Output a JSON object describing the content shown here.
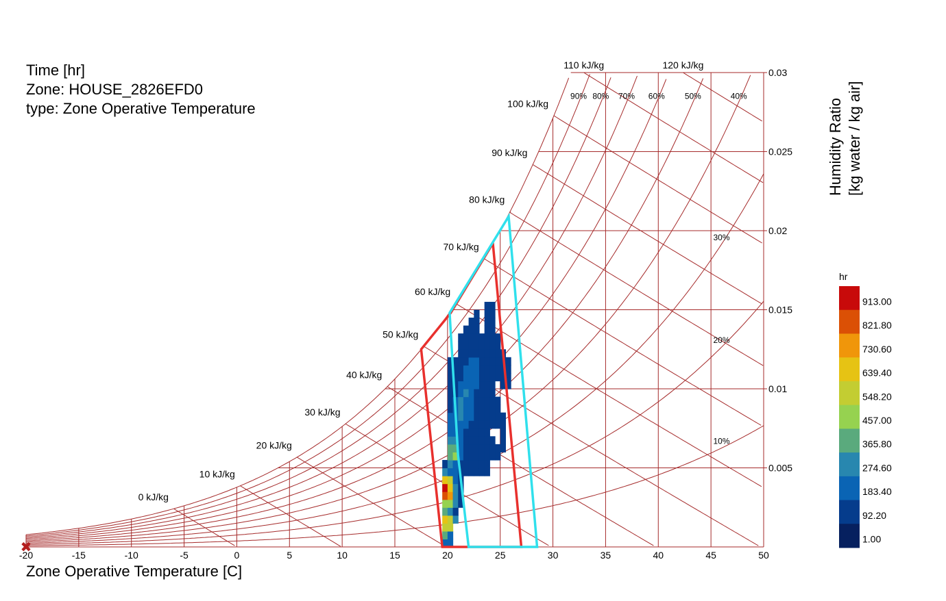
{
  "header": {
    "line1": "Time [hr]",
    "line2": "Zone: HOUSE_2826EFD0",
    "line3": "type: Zone Operative Temperature"
  },
  "chart_data": {
    "type": "heatmap",
    "xlabel": "Zone Operative Temperature [C]",
    "ylabel_line1": "Humidity Ratio",
    "ylabel_line2": "[kg water / kg air]",
    "xlim": [
      -20,
      50
    ],
    "ylim": [
      0,
      0.03
    ],
    "x_ticks": [
      "-20",
      "-15",
      "-10",
      "-5",
      "0",
      "5",
      "10",
      "15",
      "20",
      "25",
      "30",
      "35",
      "40",
      "45",
      "50"
    ],
    "y_ticks": [
      "0.005",
      "0.01",
      "0.015",
      "0.02",
      "0.025",
      "0.03"
    ],
    "enthalpy_lines": [
      0,
      10,
      20,
      30,
      40,
      50,
      60,
      70,
      80,
      90,
      100,
      110,
      120
    ],
    "enthalpy_unit": "kJ/kg",
    "rh_lines": [
      10,
      20,
      30,
      40,
      50,
      60,
      70,
      80,
      90
    ],
    "rh_labels": [
      "10%",
      "20%",
      "30%",
      "40%",
      "50%",
      "60%",
      "70%",
      "80%",
      "90%"
    ],
    "colorbar": {
      "title": "hr",
      "ticks": [
        "913.00",
        "821.80",
        "730.60",
        "639.40",
        "548.20",
        "457.00",
        "365.80",
        "274.60",
        "183.40",
        "92.20",
        "1.00"
      ],
      "colors": [
        "#c80a0a",
        "#db5005",
        "#f0960a",
        "#e6c314",
        "#c3cd32",
        "#96d250",
        "#5aaa7d",
        "#2887af",
        "#0a64b4",
        "#053c8c",
        "#06205f"
      ]
    },
    "comfort_zones": [
      {
        "color": "#e8302d",
        "points": [
          [
            19.5,
            0
          ],
          [
            22,
            0
          ],
          [
            27,
            0
          ],
          [
            24.3,
            0.0192
          ],
          [
            20.3,
            0.0148
          ],
          [
            17.5,
            0.0125
          ]
        ]
      },
      {
        "color": "#30e0ec",
        "points": [
          [
            22,
            0
          ],
          [
            28.5,
            0
          ],
          [
            25.8,
            0.0209
          ],
          [
            20.2,
            0.0148
          ],
          [
            21,
            0.0058
          ],
          [
            22,
            0
          ]
        ]
      }
    ],
    "bin_x": 0.5,
    "bin_y": 0.0005,
    "cells": [
      [
        19.5,
        0.0,
        2
      ],
      [
        20.0,
        0.0,
        2
      ],
      [
        19.5,
        0.0005,
        4
      ],
      [
        20.0,
        0.0005,
        2
      ],
      [
        19.5,
        0.001,
        6
      ],
      [
        20.0,
        0.001,
        6
      ],
      [
        19.5,
        0.0015,
        7
      ],
      [
        20.0,
        0.0015,
        6
      ],
      [
        20.5,
        0.0015,
        3
      ],
      [
        19.5,
        0.002,
        4
      ],
      [
        20.0,
        0.002,
        3
      ],
      [
        20.5,
        0.002,
        1
      ],
      [
        19.5,
        0.0025,
        5
      ],
      [
        20.0,
        0.0025,
        5
      ],
      [
        20.5,
        0.0025,
        3
      ],
      [
        21.0,
        0.0025,
        1
      ],
      [
        19.5,
        0.003,
        9
      ],
      [
        20.0,
        0.003,
        8
      ],
      [
        20.5,
        0.003,
        3
      ],
      [
        21.0,
        0.003,
        1
      ],
      [
        19.5,
        0.0035,
        10
      ],
      [
        20.0,
        0.0035,
        7
      ],
      [
        20.5,
        0.0035,
        3
      ],
      [
        21.0,
        0.0035,
        1
      ],
      [
        19.5,
        0.004,
        7
      ],
      [
        20.0,
        0.004,
        6
      ],
      [
        20.5,
        0.004,
        2
      ],
      [
        21.0,
        0.004,
        1
      ],
      [
        19.5,
        0.0045,
        3
      ],
      [
        20.0,
        0.0045,
        2
      ],
      [
        20.5,
        0.0045,
        2
      ],
      [
        21.0,
        0.0045,
        1
      ],
      [
        21.5,
        0.0045,
        1
      ],
      [
        22.0,
        0.0045,
        1
      ],
      [
        22.5,
        0.0045,
        1
      ],
      [
        23.0,
        0.0045,
        1
      ],
      [
        23.5,
        0.0045,
        1
      ],
      [
        19.5,
        0.005,
        1
      ],
      [
        20.0,
        0.005,
        3
      ],
      [
        20.5,
        0.005,
        2
      ],
      [
        21.0,
        0.005,
        1
      ],
      [
        21.5,
        0.005,
        1
      ],
      [
        22.0,
        0.005,
        1
      ],
      [
        22.5,
        0.005,
        1
      ],
      [
        23.0,
        0.005,
        1
      ],
      [
        23.5,
        0.005,
        1
      ],
      [
        20.0,
        0.0055,
        4
      ],
      [
        20.5,
        0.0055,
        5
      ],
      [
        21.0,
        0.0055,
        2
      ],
      [
        21.5,
        0.0055,
        1
      ],
      [
        22.0,
        0.0055,
        1
      ],
      [
        22.5,
        0.0055,
        1
      ],
      [
        23.0,
        0.0055,
        1
      ],
      [
        23.5,
        0.0055,
        1
      ],
      [
        24.0,
        0.0055,
        1
      ],
      [
        24.5,
        0.0055,
        1
      ],
      [
        20.0,
        0.006,
        4
      ],
      [
        20.5,
        0.006,
        4
      ],
      [
        21.0,
        0.006,
        2
      ],
      [
        21.5,
        0.006,
        1
      ],
      [
        22.0,
        0.006,
        1
      ],
      [
        22.5,
        0.006,
        1
      ],
      [
        23.0,
        0.006,
        1
      ],
      [
        23.5,
        0.006,
        1
      ],
      [
        24.0,
        0.006,
        1
      ],
      [
        24.5,
        0.006,
        1
      ],
      [
        25.0,
        0.006,
        1
      ],
      [
        20.0,
        0.0065,
        3
      ],
      [
        20.5,
        0.0065,
        3
      ],
      [
        21.0,
        0.0065,
        2
      ],
      [
        21.5,
        0.0065,
        1
      ],
      [
        22.0,
        0.0065,
        1
      ],
      [
        22.5,
        0.0065,
        1
      ],
      [
        23.0,
        0.0065,
        1
      ],
      [
        23.5,
        0.0065,
        1
      ],
      [
        24.0,
        0.0065,
        1
      ],
      [
        25.0,
        0.0065,
        1
      ],
      [
        20.0,
        0.007,
        2
      ],
      [
        20.5,
        0.007,
        2
      ],
      [
        21.0,
        0.007,
        2
      ],
      [
        21.5,
        0.007,
        1
      ],
      [
        22.0,
        0.007,
        1
      ],
      [
        22.5,
        0.007,
        1
      ],
      [
        23.0,
        0.007,
        1
      ],
      [
        23.5,
        0.007,
        1
      ],
      [
        25.0,
        0.007,
        1
      ],
      [
        20.0,
        0.0075,
        2
      ],
      [
        20.5,
        0.0075,
        2
      ],
      [
        21.0,
        0.0075,
        2
      ],
      [
        21.5,
        0.0075,
        2
      ],
      [
        22.0,
        0.0075,
        1
      ],
      [
        22.5,
        0.0075,
        1
      ],
      [
        23.0,
        0.0075,
        1
      ],
      [
        23.5,
        0.0075,
        1
      ],
      [
        24.0,
        0.0075,
        1
      ],
      [
        24.5,
        0.0075,
        1
      ],
      [
        25.0,
        0.0075,
        1
      ],
      [
        20.0,
        0.008,
        2
      ],
      [
        20.5,
        0.008,
        2
      ],
      [
        21.0,
        0.008,
        3
      ],
      [
        21.5,
        0.008,
        2
      ],
      [
        22.0,
        0.008,
        2
      ],
      [
        22.5,
        0.008,
        1
      ],
      [
        23.0,
        0.008,
        1
      ],
      [
        23.5,
        0.008,
        1
      ],
      [
        24.0,
        0.008,
        1
      ],
      [
        24.5,
        0.008,
        1
      ],
      [
        25.0,
        0.008,
        1
      ],
      [
        20.0,
        0.0085,
        1
      ],
      [
        20.5,
        0.0085,
        2
      ],
      [
        21.0,
        0.0085,
        3
      ],
      [
        21.5,
        0.0085,
        2
      ],
      [
        22.0,
        0.0085,
        2
      ],
      [
        22.5,
        0.0085,
        1
      ],
      [
        23.0,
        0.0085,
        1
      ],
      [
        23.5,
        0.0085,
        1
      ],
      [
        24.0,
        0.0085,
        1
      ],
      [
        24.5,
        0.0085,
        1
      ],
      [
        20.0,
        0.009,
        1
      ],
      [
        20.5,
        0.009,
        2
      ],
      [
        21.0,
        0.009,
        3
      ],
      [
        21.5,
        0.009,
        2
      ],
      [
        22.0,
        0.009,
        2
      ],
      [
        22.5,
        0.009,
        1
      ],
      [
        23.0,
        0.009,
        1
      ],
      [
        23.5,
        0.009,
        1
      ],
      [
        24.0,
        0.009,
        1
      ],
      [
        24.5,
        0.009,
        1
      ],
      [
        20.0,
        0.0095,
        1
      ],
      [
        20.5,
        0.0095,
        1
      ],
      [
        21.0,
        0.0095,
        2
      ],
      [
        21.5,
        0.0095,
        3
      ],
      [
        22.0,
        0.0095,
        2
      ],
      [
        22.5,
        0.0095,
        1
      ],
      [
        23.0,
        0.0095,
        1
      ],
      [
        23.5,
        0.0095,
        1
      ],
      [
        24.0,
        0.0095,
        1
      ],
      [
        20.0,
        0.01,
        1
      ],
      [
        20.5,
        0.01,
        1
      ],
      [
        21.0,
        0.01,
        2
      ],
      [
        21.5,
        0.01,
        2
      ],
      [
        22.0,
        0.01,
        2
      ],
      [
        22.5,
        0.01,
        2
      ],
      [
        23.0,
        0.01,
        1
      ],
      [
        23.5,
        0.01,
        1
      ],
      [
        24.0,
        0.01,
        1
      ],
      [
        25.0,
        0.01,
        1
      ],
      [
        25.5,
        0.01,
        1
      ],
      [
        20.0,
        0.0105,
        1
      ],
      [
        20.5,
        0.0105,
        1
      ],
      [
        21.0,
        0.0105,
        1
      ],
      [
        21.5,
        0.0105,
        2
      ],
      [
        22.0,
        0.0105,
        2
      ],
      [
        22.5,
        0.0105,
        2
      ],
      [
        23.0,
        0.0105,
        1
      ],
      [
        23.5,
        0.0105,
        1
      ],
      [
        24.0,
        0.0105,
        1
      ],
      [
        24.5,
        0.0105,
        1
      ],
      [
        25.0,
        0.0105,
        1
      ],
      [
        25.5,
        0.0105,
        1
      ],
      [
        20.0,
        0.011,
        1
      ],
      [
        20.5,
        0.011,
        1
      ],
      [
        21.0,
        0.011,
        1
      ],
      [
        21.5,
        0.011,
        2
      ],
      [
        22.0,
        0.011,
        2
      ],
      [
        22.5,
        0.011,
        2
      ],
      [
        23.0,
        0.011,
        1
      ],
      [
        23.5,
        0.011,
        1
      ],
      [
        24.0,
        0.011,
        1
      ],
      [
        24.5,
        0.011,
        1
      ],
      [
        25.0,
        0.011,
        1
      ],
      [
        25.5,
        0.011,
        1
      ],
      [
        20.0,
        0.0115,
        1
      ],
      [
        20.5,
        0.0115,
        1
      ],
      [
        21.0,
        0.0115,
        1
      ],
      [
        21.5,
        0.0115,
        1
      ],
      [
        22.0,
        0.0115,
        2
      ],
      [
        22.5,
        0.0115,
        2
      ],
      [
        23.0,
        0.0115,
        1
      ],
      [
        23.5,
        0.0115,
        1
      ],
      [
        24.0,
        0.0115,
        1
      ],
      [
        24.5,
        0.0115,
        1
      ],
      [
        25.0,
        0.0115,
        1
      ],
      [
        25.5,
        0.0115,
        1
      ],
      [
        21.0,
        0.012,
        1
      ],
      [
        21.5,
        0.012,
        1
      ],
      [
        22.0,
        0.012,
        1
      ],
      [
        22.5,
        0.012,
        1
      ],
      [
        23.0,
        0.012,
        1
      ],
      [
        23.5,
        0.012,
        1
      ],
      [
        24.0,
        0.012,
        1
      ],
      [
        24.5,
        0.012,
        1
      ],
      [
        25.0,
        0.012,
        1
      ],
      [
        21.0,
        0.0125,
        1
      ],
      [
        21.5,
        0.0125,
        1
      ],
      [
        22.0,
        0.0125,
        1
      ],
      [
        22.5,
        0.0125,
        1
      ],
      [
        23.0,
        0.0125,
        1
      ],
      [
        23.5,
        0.0125,
        1
      ],
      [
        24.0,
        0.0125,
        1
      ],
      [
        24.5,
        0.0125,
        1
      ],
      [
        21.0,
        0.013,
        1
      ],
      [
        21.5,
        0.013,
        1
      ],
      [
        22.0,
        0.013,
        1
      ],
      [
        22.5,
        0.013,
        1
      ],
      [
        23.0,
        0.013,
        1
      ],
      [
        23.5,
        0.013,
        1
      ],
      [
        24.0,
        0.013,
        1
      ],
      [
        24.5,
        0.013,
        1
      ],
      [
        21.5,
        0.0135,
        1
      ],
      [
        22.0,
        0.0135,
        1
      ],
      [
        22.5,
        0.0135,
        1
      ],
      [
        23.5,
        0.0135,
        1
      ],
      [
        24.0,
        0.0135,
        1
      ],
      [
        22.0,
        0.014,
        1
      ],
      [
        22.5,
        0.014,
        1
      ],
      [
        23.5,
        0.014,
        1
      ],
      [
        24.0,
        0.014,
        1
      ],
      [
        22.5,
        0.0145,
        1
      ],
      [
        23.5,
        0.0145,
        1
      ],
      [
        24.0,
        0.0145,
        1
      ],
      [
        23.5,
        0.015,
        1
      ],
      [
        24.0,
        0.015,
        1
      ]
    ],
    "marker": {
      "x": -20,
      "y": 0,
      "symbol": "✖",
      "color": "#b41e1e"
    }
  }
}
